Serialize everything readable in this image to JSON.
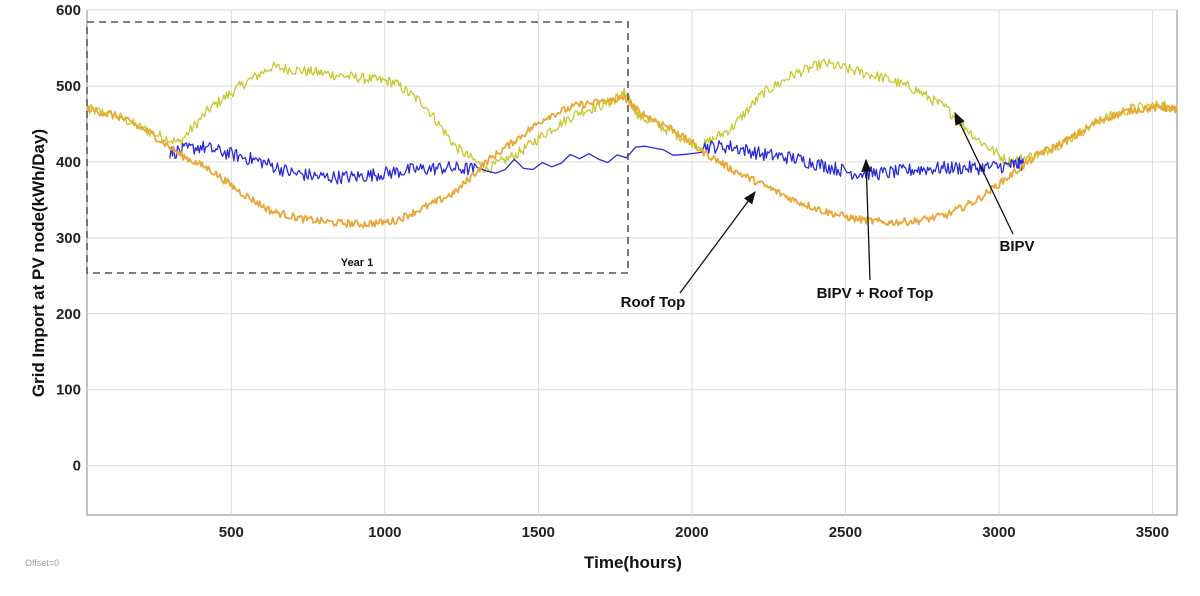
{
  "chart_data": {
    "type": "line",
    "xlabel": "Time(hours)",
    "ylabel": "Grid Import at PV node(kWh/Day)",
    "xlim": [
      30,
      3580
    ],
    "ylim": [
      -65,
      600
    ],
    "x_ticks": [
      500,
      1000,
      1500,
      2000,
      2500,
      3000,
      3500
    ],
    "y_ticks": [
      0,
      100,
      200,
      300,
      400,
      500,
      600
    ],
    "grid": true,
    "series": [
      {
        "name": "BIPV",
        "color": "#c8c832",
        "x": [
          30,
          130,
          230,
          330,
          430,
          530,
          630,
          730,
          830,
          930,
          1030,
          1130,
          1230,
          1330,
          1430,
          1530,
          1630,
          1730,
          1780,
          1830,
          1930,
          2030,
          2130,
          2230,
          2330,
          2430,
          2530,
          2630,
          2730,
          2830,
          2930,
          3030,
          3130,
          3230,
          3330,
          3430,
          3530,
          3580
        ],
        "y": [
          470,
          460,
          440,
          425,
          470,
          500,
          525,
          520,
          515,
          510,
          505,
          475,
          420,
          390,
          410,
          440,
          465,
          478,
          490,
          460,
          440,
          420,
          445,
          490,
          515,
          530,
          520,
          510,
          495,
          470,
          430,
          400,
          410,
          430,
          455,
          470,
          475,
          470
        ]
      },
      {
        "name": "BIPV + Roof Top",
        "color": "#2b2bd6",
        "x": [
          300,
          400,
          500,
          600,
          700,
          800,
          900,
          1000,
          1100,
          1200,
          1300,
          2030,
          2130,
          2230,
          2330,
          2430,
          2530,
          2630,
          2730,
          2830,
          2930,
          3030,
          3080
        ],
        "y": [
          412,
          420,
          410,
          400,
          385,
          380,
          380,
          385,
          390,
          392,
          390,
          420,
          420,
          410,
          405,
          395,
          385,
          385,
          390,
          392,
          392,
          395,
          398
        ]
      },
      {
        "name": "Roof Top",
        "color": "#e8a838",
        "x": [
          30,
          130,
          230,
          330,
          430,
          530,
          630,
          730,
          830,
          930,
          1030,
          1130,
          1230,
          1330,
          1430,
          1530,
          1630,
          1730,
          1780,
          1830,
          1930,
          2030,
          2130,
          2230,
          2330,
          2430,
          2530,
          2630,
          2730,
          2830,
          2930,
          3030,
          3130,
          3230,
          3330,
          3430,
          3530,
          3580
        ],
        "y": [
          470,
          460,
          440,
          410,
          390,
          360,
          335,
          325,
          320,
          318,
          322,
          340,
          360,
          400,
          430,
          460,
          475,
          480,
          485,
          465,
          445,
          415,
          390,
          370,
          350,
          335,
          325,
          320,
          322,
          330,
          350,
          380,
          410,
          430,
          455,
          468,
          472,
          468
        ]
      }
    ],
    "annotations": {
      "year_box": "Year 1",
      "bipv": "BIPV",
      "bipv_roof": "BIPV + Roof Top",
      "roof": "Roof Top"
    },
    "footnote": "Offset=0"
  }
}
